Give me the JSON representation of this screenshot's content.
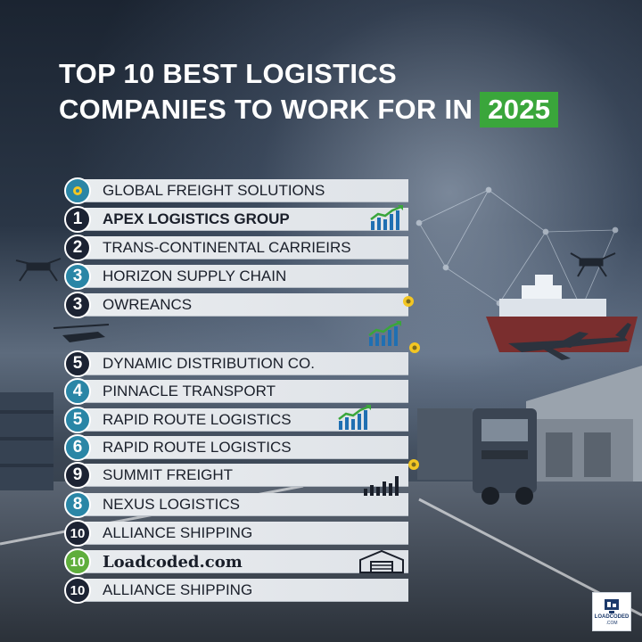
{
  "title": {
    "line1": "TOP 10 BEST LOGISTICS",
    "line2": "COMPANIES TO WORK FOR IN",
    "year": "2025",
    "year_color": "#3aa63b"
  },
  "list": [
    {
      "rank": "",
      "icon": "gear-icon",
      "name": "GLOBAL FREIGHT SOLUTIONS",
      "badge_style": "teal"
    },
    {
      "rank": "1",
      "name": "APEX LOGISTICS GROUP",
      "badge_style": "dark"
    },
    {
      "rank": "2",
      "name": "TRANS-CONTINENTAL CARRIEIRS",
      "badge_style": "dark"
    },
    {
      "rank": "3",
      "name": "HORIZON SUPPLY CHAIN",
      "badge_style": "teal"
    },
    {
      "rank": "3",
      "name": "OWREANCS",
      "badge_style": "dark"
    },
    {
      "rank": "5",
      "name": "DYNAMIC DISTRIBUTION CO.",
      "badge_style": "dark"
    },
    {
      "rank": "4",
      "name": "PINNACLE TRANSPORT",
      "badge_style": "teal"
    },
    {
      "rank": "5",
      "name": "RAPID ROUTE LOGISTICS",
      "badge_style": "teal"
    },
    {
      "rank": "6",
      "name": "RAPID ROUTE LOGISTICS",
      "badge_style": "teal"
    },
    {
      "rank": "9",
      "name": "SUMMIT FREIGHT",
      "badge_style": "dark"
    },
    {
      "rank": "8",
      "name": "NEXUS LOGISTICS",
      "badge_style": "teal"
    },
    {
      "rank": "10",
      "name": "ALLIANCE SHIPPING",
      "badge_style": "dark"
    },
    {
      "rank": "10",
      "name": "Loadcoded.com",
      "badge_style": "green"
    },
    {
      "rank": "10",
      "name": "ALLIANCE SHIPPING",
      "badge_style": "dark"
    }
  ],
  "watermark": {
    "line1": "LOADCODED",
    "line2": ".COM"
  }
}
